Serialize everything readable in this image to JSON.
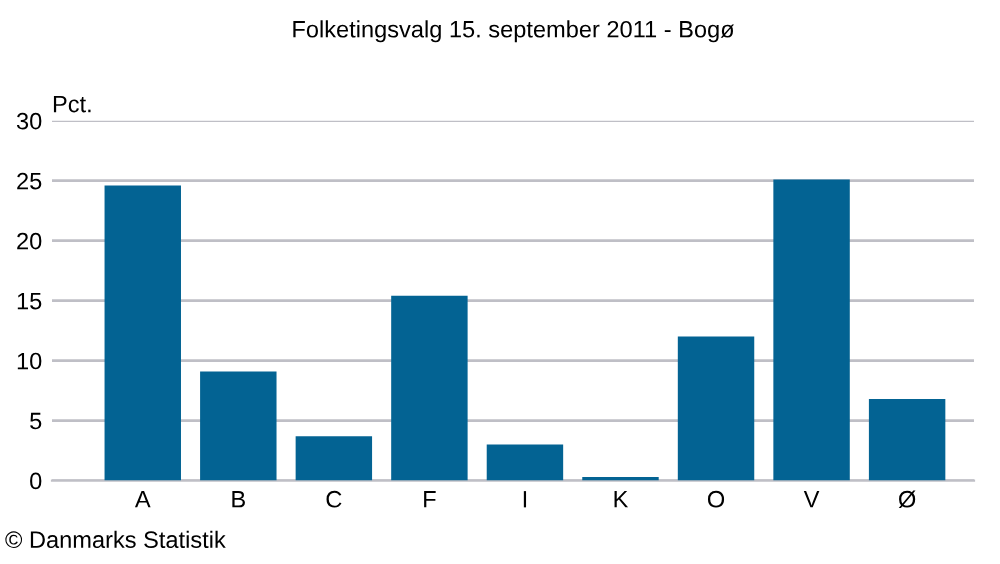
{
  "chart_data": {
    "type": "bar",
    "title": "Folketingsvalg 15. september 2011 - Bogø",
    "ylabel": "Pct.",
    "categories": [
      "A",
      "B",
      "C",
      "F",
      "I",
      "K",
      "O",
      "V",
      "Ø"
    ],
    "values": [
      24.6,
      9.1,
      3.7,
      15.4,
      3.0,
      0.3,
      12.0,
      25.1,
      6.8
    ],
    "color": "#036393",
    "ylim": [
      0,
      30
    ],
    "yticks": [
      0,
      5,
      10,
      15,
      20,
      25,
      30
    ],
    "grid": "y",
    "annotations": [
      "© Danmarks Statistik"
    ]
  }
}
